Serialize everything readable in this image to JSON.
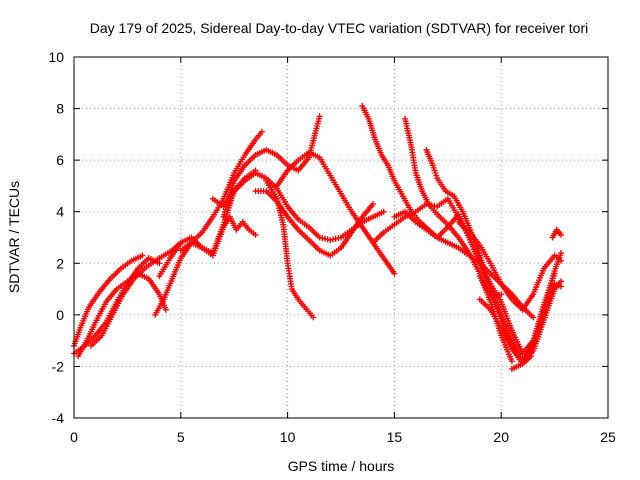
{
  "chart_data": {
    "type": "scatter",
    "title": "Day 179 of 2025, Sidereal Day-to-day VTEC variation (SDTVAR) for receiver tori",
    "xlabel": "GPS time / hours",
    "ylabel": "SDTVAR / TECUs",
    "xlim": [
      0,
      25
    ],
    "ylim": [
      -4,
      10
    ],
    "xticks": [
      0,
      5,
      10,
      15,
      20,
      25
    ],
    "yticks": [
      -4,
      -2,
      0,
      2,
      4,
      6,
      8,
      10
    ],
    "grid": true,
    "marker": "plus",
    "color": "#ff0000",
    "series": [
      {
        "x": [
          0,
          0.5,
          1,
          1.5,
          2,
          2.5,
          3,
          3.5,
          4
        ],
        "y": [
          -1.5,
          -1.2,
          -0.8,
          -0.3,
          0.5,
          1.2,
          1.8,
          2.2,
          2.0
        ]
      },
      {
        "x": [
          0,
          0.3,
          0.7,
          1.2,
          1.7,
          2.2,
          2.7,
          3.2
        ],
        "y": [
          -1.2,
          -0.5,
          0.3,
          0.9,
          1.4,
          1.8,
          2.1,
          2.3
        ]
      },
      {
        "x": [
          0.2,
          0.6,
          1,
          1.5,
          2,
          2.5,
          3,
          3.5,
          4,
          4.3
        ],
        "y": [
          -1.6,
          -1,
          -0.3,
          0.5,
          1.0,
          1.3,
          1.6,
          1.4,
          0.8,
          0.2
        ]
      },
      {
        "x": [
          0.8,
          1.3,
          1.8,
          2.3,
          2.8,
          3.3,
          3.8,
          4.2,
          4.6,
          5
        ],
        "y": [
          -1.2,
          -0.8,
          0,
          0.8,
          1.4,
          1.8,
          2.1,
          2.3,
          2.5,
          2.8
        ]
      },
      {
        "x": [
          3.8,
          4.2,
          4.6,
          5,
          5.5,
          6,
          6.5,
          7,
          7.5,
          8,
          8.5,
          8.8
        ],
        "y": [
          0,
          0.6,
          1.4,
          2.2,
          2.8,
          3.2,
          3.8,
          4.5,
          5.5,
          6.2,
          6.8,
          7.1
        ]
      },
      {
        "x": [
          4,
          4.5,
          5,
          5.5,
          6,
          6.5,
          7,
          7.5,
          8,
          8.5
        ],
        "y": [
          1.5,
          2.2,
          2.8,
          3.0,
          2.6,
          2.4,
          3.5,
          4.8,
          5.3,
          5.6
        ]
      },
      {
        "x": [
          5,
          5.5,
          6,
          6.5,
          7,
          7.3,
          7.6,
          7.9,
          8.2,
          8.5
        ],
        "y": [
          2.5,
          2.8,
          2.6,
          2.3,
          3.4,
          3.8,
          3.3,
          3.6,
          3.3,
          3.1
        ]
      },
      {
        "x": [
          7,
          7.5,
          8,
          8.5,
          9,
          9.5,
          10,
          10.5,
          11,
          11.5
        ],
        "y": [
          3.8,
          5.2,
          5.8,
          6.2,
          6.4,
          6.2,
          5.8,
          5.6,
          6.1,
          7.7
        ]
      },
      {
        "x": [
          6.5,
          7,
          7.5,
          8,
          8.5,
          9,
          9.5,
          10,
          10.5,
          11,
          11.5,
          12,
          12.5,
          13,
          13.5,
          14,
          14.5
        ],
        "y": [
          4.5,
          4.2,
          4.8,
          5.2,
          5.5,
          5.3,
          4.9,
          4.2,
          3.7,
          3.4,
          3.0,
          2.9,
          3.0,
          3.3,
          3.6,
          3.8,
          4.0
        ]
      },
      {
        "x": [
          8.5,
          9,
          9.5,
          10,
          10.5,
          11,
          11.5,
          12,
          12.5,
          13,
          13.5,
          14
        ],
        "y": [
          4.8,
          4.8,
          4.4,
          3.8,
          3.3,
          2.9,
          2.5,
          2.3,
          2.6,
          3.2,
          3.8,
          4.3
        ]
      },
      {
        "x": [
          9,
          9.5,
          9.8,
          10,
          10.2,
          10.5,
          10.8,
          11.2
        ],
        "y": [
          5.2,
          4.5,
          3.5,
          2.0,
          1.0,
          0.6,
          0.3,
          -0.1
        ]
      },
      {
        "x": [
          9.5,
          10,
          10.5,
          11,
          11.5,
          12,
          12.5,
          13,
          13.5,
          14,
          14.5,
          15
        ],
        "y": [
          5.0,
          5.6,
          6.0,
          6.3,
          6.1,
          5.4,
          4.7,
          4.0,
          3.4,
          2.8,
          2.2,
          1.6
        ]
      },
      {
        "x": [
          13.5,
          13.8,
          14.1,
          14.4,
          14.7,
          15,
          15.4,
          15.8,
          16.2,
          16.6,
          17,
          17.5,
          18,
          18.5,
          19,
          19.5,
          20,
          20.5,
          21,
          21.5
        ],
        "y": [
          8.1,
          7.6,
          6.8,
          6.2,
          5.8,
          5.2,
          4.6,
          4.0,
          3.6,
          3.3,
          3.0,
          2.8,
          2.6,
          2.3,
          2.0,
          1.6,
          1.2,
          0.8,
          0.3,
          -0.1
        ]
      },
      {
        "x": [
          15.5,
          15.8,
          16,
          16.3,
          16.6,
          17,
          17.5,
          18,
          18.5,
          19,
          19.5,
          20,
          20.5
        ],
        "y": [
          7.6,
          6.5,
          5.5,
          4.8,
          4.3,
          3.9,
          3.5,
          3.0,
          2.4,
          1.6,
          0.5,
          -0.8,
          -1.8
        ]
      },
      {
        "x": [
          16.5,
          16.8,
          17,
          17.4,
          17.8,
          18.2,
          18.6,
          19,
          19.4,
          19.8,
          20.2,
          20.6,
          21,
          21.4
        ],
        "y": [
          6.4,
          5.8,
          5.3,
          4.8,
          4.6,
          4.0,
          3.2,
          2.3,
          1.3,
          0.3,
          -0.7,
          -1.4,
          -1.9,
          -1.6
        ]
      },
      {
        "x": [
          15,
          15.5,
          16,
          16.5,
          17,
          17.5,
          18,
          18.5,
          19,
          19.5,
          20,
          20.5,
          21,
          21.5,
          22,
          22.5,
          22.8
        ],
        "y": [
          3.8,
          4.0,
          3.6,
          3.3,
          3.0,
          3.4,
          3.9,
          3.0,
          2.0,
          1.0,
          0.0,
          -1.0,
          -1.8,
          -1.4,
          -0.2,
          1.0,
          1.3
        ]
      },
      {
        "x": [
          14,
          14.5,
          15,
          15.5,
          16,
          16.5,
          17,
          17.5,
          18,
          18.5,
          19,
          19.5,
          20,
          20.5,
          21,
          21.5,
          22,
          22.5
        ],
        "y": [
          2.8,
          3.2,
          3.5,
          3.8,
          4.0,
          4.3,
          4.2,
          4.5,
          3.8,
          3.0,
          2.0,
          1.2,
          0.5,
          -0.6,
          -1.5,
          -1.0,
          0.4,
          1.6
        ]
      },
      {
        "x": [
          18,
          18.5,
          19,
          19.5,
          20,
          20.5,
          21,
          21.5,
          22,
          22.5,
          22.8
        ],
        "y": [
          3.6,
          3.2,
          2.7,
          2.0,
          1.2,
          0.6,
          0.2,
          0.8,
          1.8,
          2.3,
          2.1
        ]
      },
      {
        "x": [
          19,
          19.5,
          20,
          20.5,
          21,
          21.5,
          22,
          22.5,
          22.8
        ],
        "y": [
          0.6,
          0.2,
          -0.5,
          -1.3,
          -1.8,
          -1.2,
          0.0,
          1.2,
          1.1
        ]
      },
      {
        "x": [
          20.5,
          21,
          21.5,
          22,
          22.5,
          22.8
        ],
        "y": [
          -2.1,
          -1.9,
          -1.0,
          0.3,
          1.7,
          2.4
        ]
      },
      {
        "x": [
          22.4,
          22.6,
          22.8
        ],
        "y": [
          3.0,
          3.3,
          3.1
        ]
      },
      {
        "x": [
          19,
          19.3,
          19.6,
          20
        ],
        "y": [
          1.5,
          1.0,
          0.7,
          0.8
        ]
      }
    ]
  }
}
